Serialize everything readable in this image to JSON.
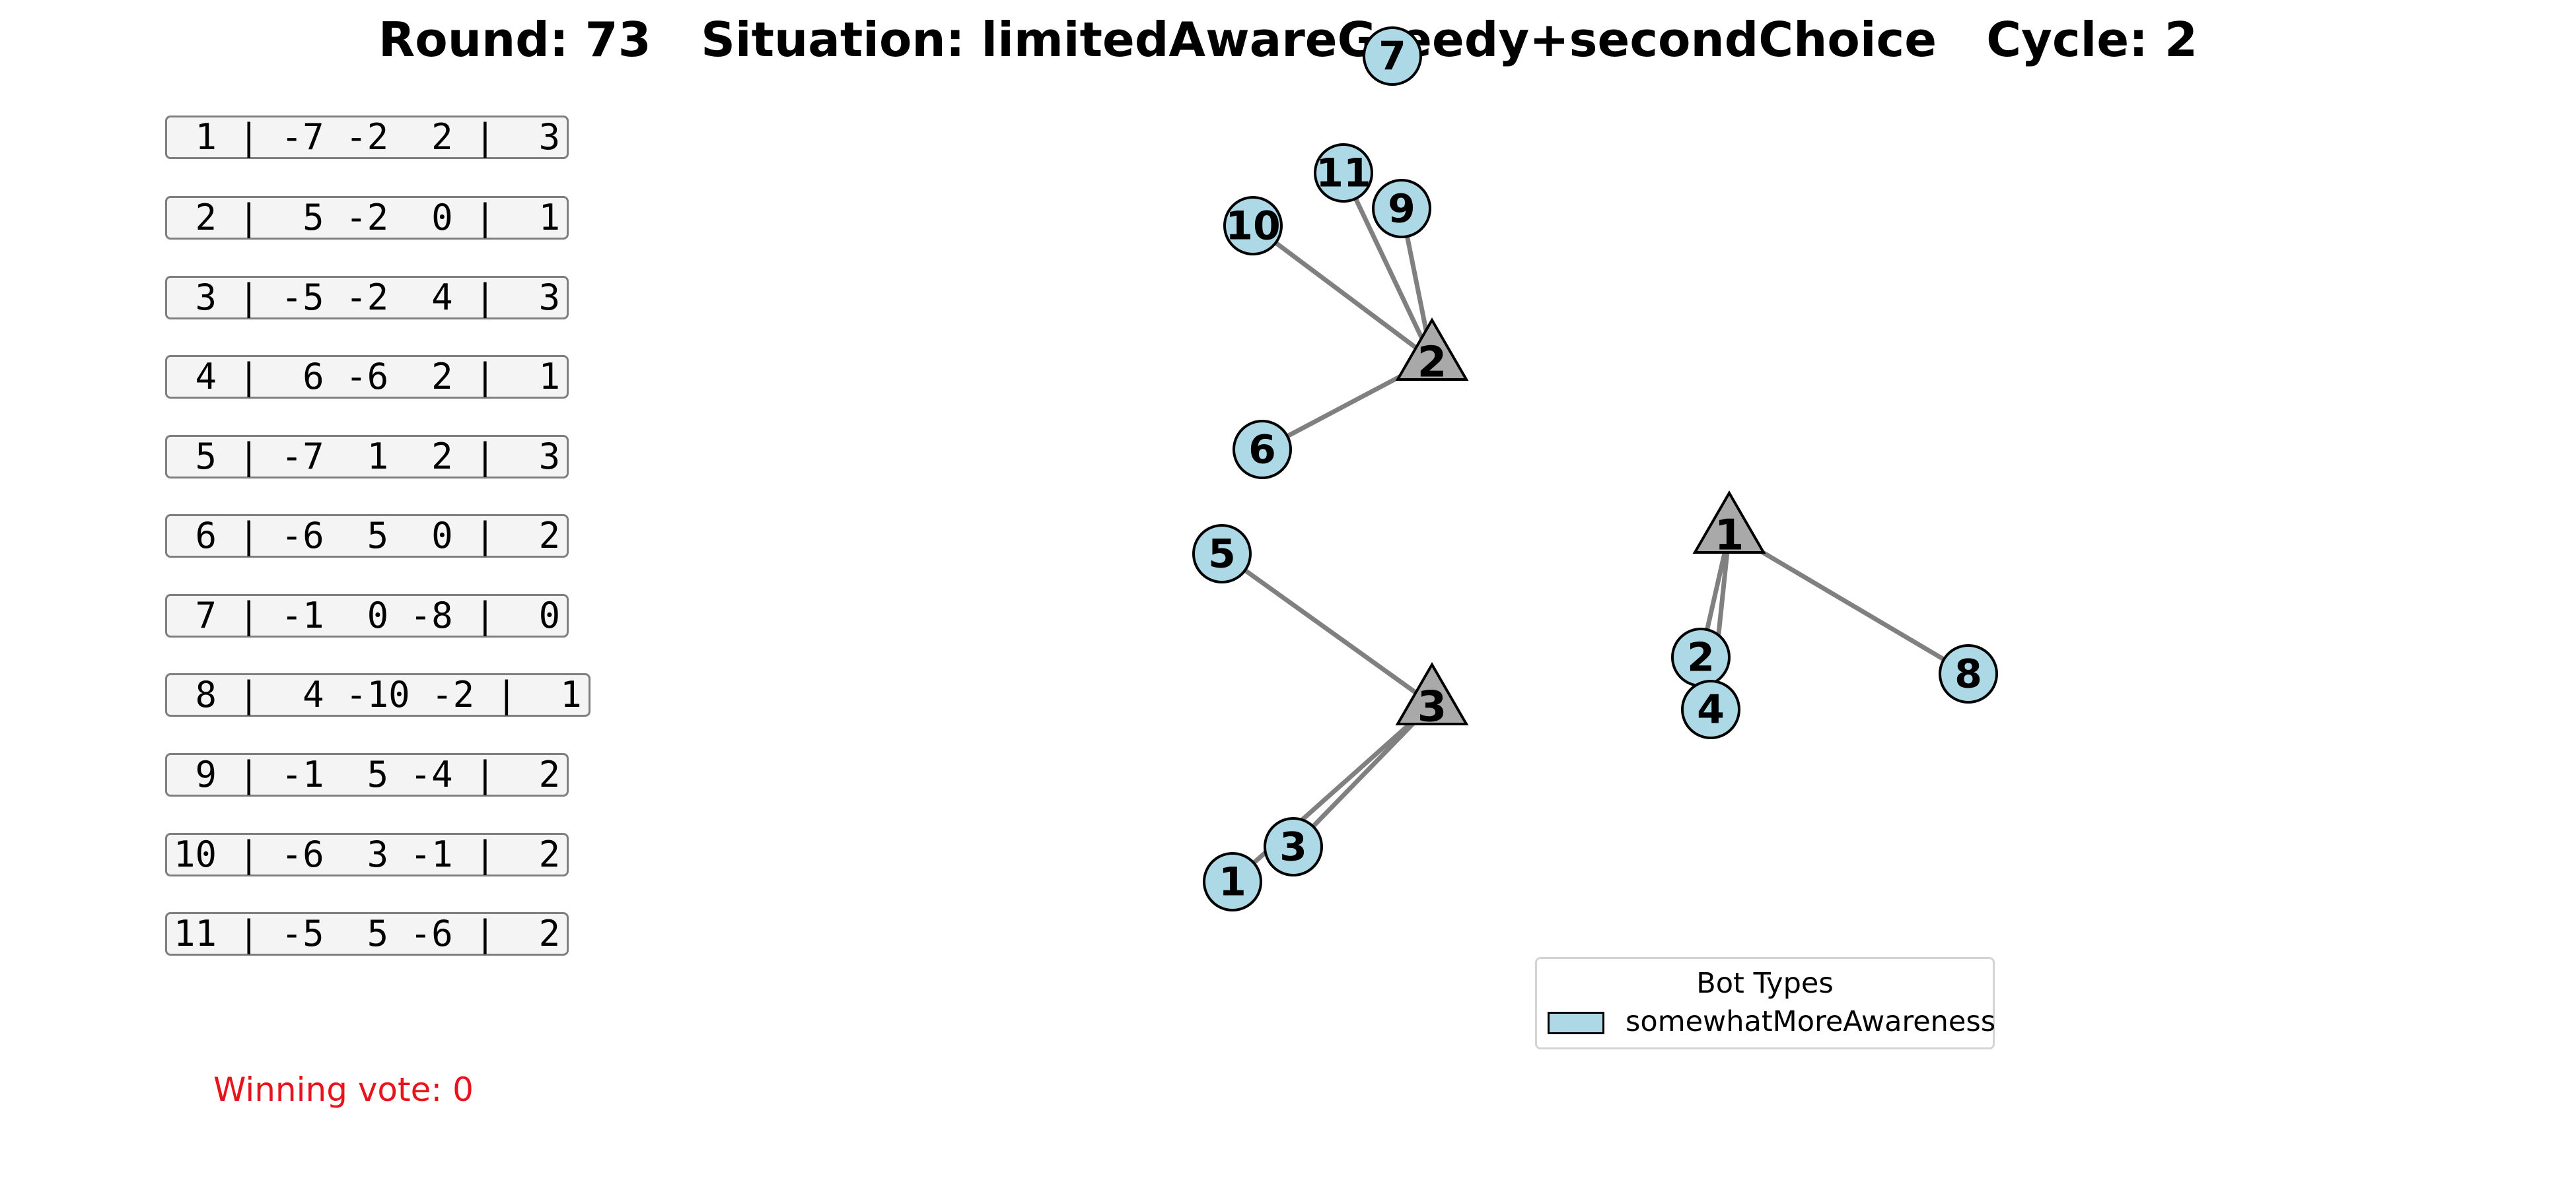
{
  "header": {
    "title": "Round: 73   Situation: limitedAwareGreedy+secondChoice   Cycle: 2"
  },
  "bot_table": {
    "rows": [
      " 1 | -7 -2  2 |  3",
      " 2 |  5 -2  0 |  1",
      " 3 | -5 -2  4 |  3",
      " 4 |  6 -6  2 |  1",
      " 5 | -7  1  2 |  3",
      " 6 | -6  5  0 |  2",
      " 7 | -1  0 -8 |  0",
      " 8 |  4 -10 -2 |  1",
      " 9 | -1  5 -4 |  2",
      "10 | -6  3 -1 |  2",
      "11 | -5  5 -6 |  2"
    ]
  },
  "winning_vote": "Winning vote: 0",
  "legend": {
    "title": "Bot Types",
    "entries": [
      {
        "label": "somewhatMoreAwareness",
        "color": "#add8e6"
      }
    ]
  },
  "graph": {
    "colors": {
      "bot_fill": "#add8e6",
      "candidate_fill": "#a9a9a9",
      "edge": "#808080",
      "outline": "#000000"
    },
    "candidates": [
      {
        "id": "1"
      },
      {
        "id": "2"
      },
      {
        "id": "3"
      }
    ],
    "bots": [
      {
        "id": "1",
        "vote": "3"
      },
      {
        "id": "2",
        "vote": "1"
      },
      {
        "id": "3",
        "vote": "3"
      },
      {
        "id": "4",
        "vote": "1"
      },
      {
        "id": "5",
        "vote": "3"
      },
      {
        "id": "6",
        "vote": "2"
      },
      {
        "id": "7",
        "vote": "0"
      },
      {
        "id": "8",
        "vote": "1"
      },
      {
        "id": "9",
        "vote": "2"
      },
      {
        "id": "10",
        "vote": "2"
      },
      {
        "id": "11",
        "vote": "2"
      }
    ]
  }
}
